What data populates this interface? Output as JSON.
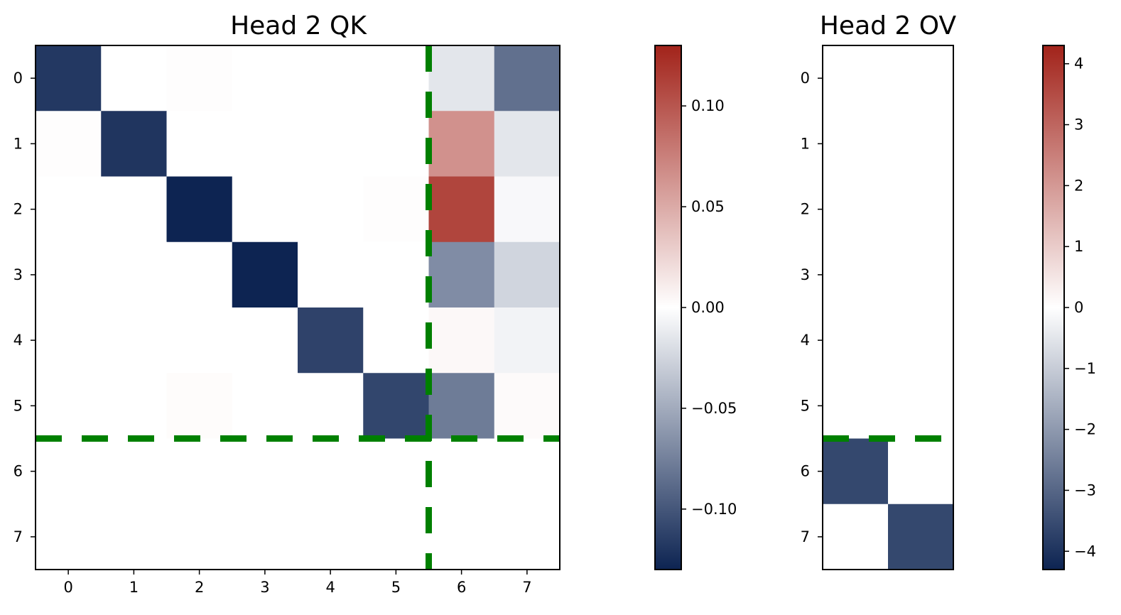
{
  "chart_data": [
    {
      "type": "heatmap",
      "title": "Head 2 QK",
      "xlabel": "",
      "ylabel": "",
      "x_ticks": [
        "0",
        "1",
        "2",
        "3",
        "4",
        "5",
        "6",
        "7"
      ],
      "y_ticks": [
        "0",
        "1",
        "2",
        "3",
        "4",
        "5",
        "6",
        "7"
      ],
      "values": [
        [
          -0.118,
          0.0,
          0.001,
          0.0,
          0.0,
          0.0,
          -0.015,
          -0.085
        ],
        [
          0.001,
          -0.12,
          0.0,
          0.0,
          0.0,
          0.0,
          0.065,
          -0.015
        ],
        [
          0.0,
          0.0,
          -0.13,
          0.0,
          0.0,
          0.001,
          0.11,
          -0.004
        ],
        [
          0.0,
          0.0,
          0.0,
          -0.132,
          0.0,
          0.0,
          -0.068,
          -0.025
        ],
        [
          0.0,
          0.0,
          0.0,
          0.0,
          -0.112,
          0.0,
          0.004,
          -0.007
        ],
        [
          0.0,
          0.0,
          0.002,
          0.0,
          0.0,
          -0.11,
          -0.078,
          0.003
        ],
        [
          0.0,
          0.0,
          0.0,
          0.0,
          0.0,
          0.0,
          0.0,
          0.0
        ],
        [
          0.0,
          0.0,
          0.0,
          0.0,
          0.0,
          0.0,
          0.0,
          0.0
        ]
      ],
      "vmin": -0.13,
      "vmax": 0.13,
      "colorbar_ticks": [
        "0.10",
        "0.05",
        "0.00",
        "−0.05",
        "−0.10"
      ],
      "colorbar_tick_values": [
        0.1,
        0.05,
        0.0,
        -0.05,
        -0.1
      ],
      "dashed_lines": [
        {
          "orientation": "horizontal",
          "at": 5.5
        },
        {
          "orientation": "vertical",
          "at": 5.5
        }
      ],
      "dashed_line_color": "#008000"
    },
    {
      "type": "heatmap",
      "title": "Head 2 OV",
      "xlabel": "",
      "ylabel": "",
      "x_ticks": [],
      "y_ticks": [
        "0",
        "1",
        "2",
        "3",
        "4",
        "5",
        "6",
        "7"
      ],
      "values": [
        [
          0,
          0
        ],
        [
          0,
          0
        ],
        [
          0,
          0
        ],
        [
          0,
          0
        ],
        [
          0,
          0
        ],
        [
          0,
          0
        ],
        [
          -3.6,
          0
        ],
        [
          0,
          -3.6
        ]
      ],
      "vmin": -4.3,
      "vmax": 4.3,
      "colorbar_ticks": [
        "4",
        "3",
        "2",
        "1",
        "0",
        "−1",
        "−2",
        "−3",
        "−4"
      ],
      "colorbar_tick_values": [
        4,
        3,
        2,
        1,
        0,
        -1,
        -2,
        -3,
        -4
      ],
      "dashed_lines": [
        {
          "orientation": "horizontal",
          "at": 5.5
        }
      ],
      "dashed_line_color": "#008000"
    }
  ],
  "colormap": {
    "negative_end": "#0d2452",
    "mid": "#ffffff",
    "positive_end": "#a2231a"
  }
}
